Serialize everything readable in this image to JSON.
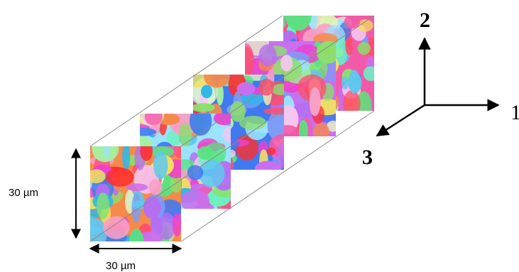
{
  "dimensions": {
    "height_label": "30 µm",
    "width_label": "30 µm"
  },
  "axes": {
    "axis_2": "2",
    "axis_1": "1",
    "axis_3": "3"
  },
  "slices": {
    "count": 4,
    "palette": [
      "#f25aa8",
      "#8be06a",
      "#5fc7f0",
      "#c96ef0",
      "#f7a0c8",
      "#a6f0a0",
      "#3f7af0",
      "#f0e060",
      "#ff4f6e",
      "#9ae3ff",
      "#b66df2",
      "#6cf0c0",
      "#f58a4a",
      "#e8f5c0",
      "#7d9cf7",
      "#ee3fd0",
      "#57e47f",
      "#f6c7f0",
      "#2fb7e8",
      "#ff2f2f"
    ]
  },
  "colors": {
    "line": "#000000",
    "box_edge": "#808080"
  }
}
